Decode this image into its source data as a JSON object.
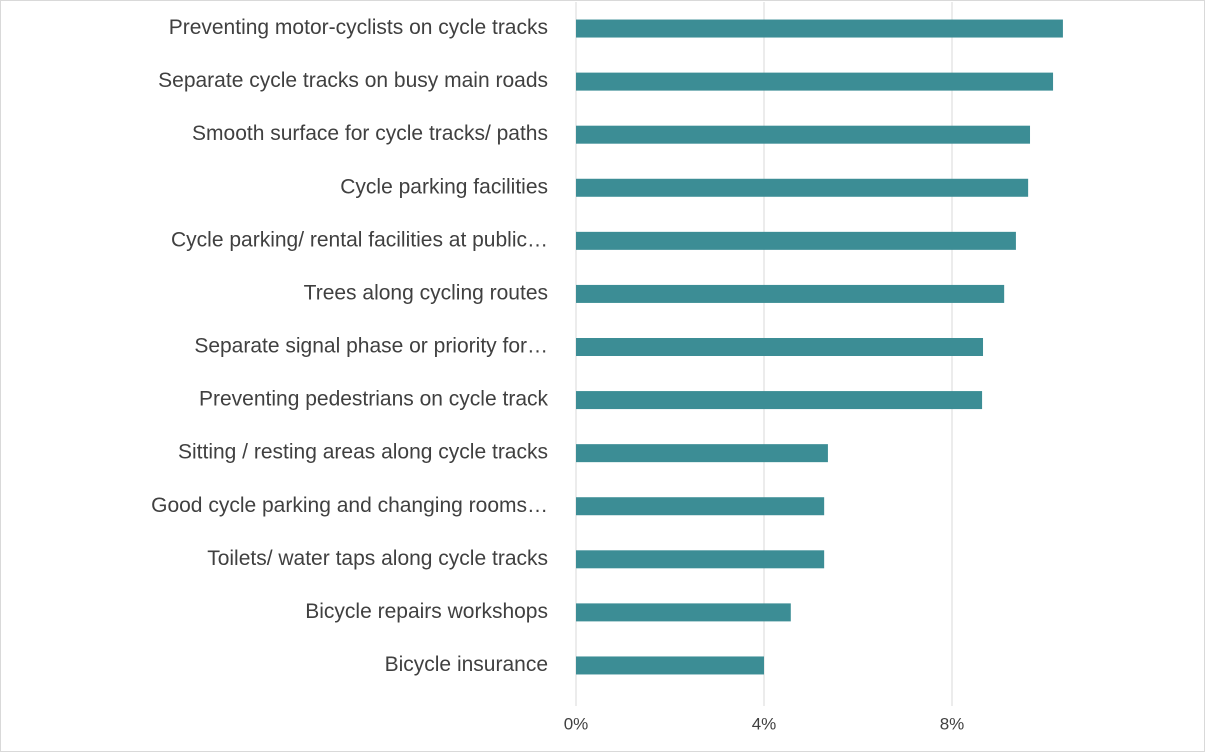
{
  "chart_data": {
    "type": "bar",
    "orientation": "horizontal",
    "categories": [
      "Preventing motor-cyclists on cycle tracks",
      "Separate cycle tracks on busy main roads",
      "Smooth surface for cycle tracks/ paths",
      "Cycle parking facilities",
      "Cycle parking/ rental facilities at public…",
      "Trees along cycling routes",
      "Separate signal phase or priority for…",
      "Preventing pedestrians on cycle track",
      "Sitting / resting areas along cycle tracks",
      "Good cycle parking and changing rooms…",
      "Toilets/ water taps along cycle tracks",
      "Bicycle repairs workshops",
      "Bicycle insurance"
    ],
    "values": [
      10.36,
      10.15,
      9.66,
      9.62,
      9.36,
      9.11,
      8.66,
      8.64,
      5.36,
      5.28,
      5.28,
      4.57,
      4.0
    ],
    "color": "#3c8d95",
    "xlim": [
      0,
      12
    ],
    "xticks": [
      {
        "value": 0,
        "label": "0%"
      },
      {
        "value": 4,
        "label": "4%"
      },
      {
        "value": 8,
        "label": "8%"
      }
    ],
    "grid": true
  }
}
